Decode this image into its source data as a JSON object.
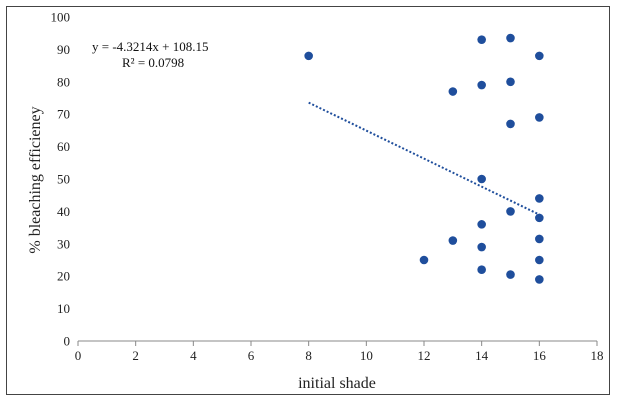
{
  "chart_data": {
    "type": "scatter",
    "title": "",
    "xlabel": "initial shade",
    "ylabel": "% bleaching efficieney",
    "xlim": [
      0,
      18
    ],
    "ylim": [
      0,
      100
    ],
    "xticks": [
      0,
      2,
      4,
      6,
      8,
      10,
      12,
      14,
      16,
      18
    ],
    "yticks": [
      0,
      10,
      20,
      30,
      40,
      50,
      60,
      70,
      80,
      90,
      100
    ],
    "grid": false,
    "legend": "none",
    "marker_color": "#1f4e9c",
    "trendline_color": "#1f4e9c",
    "points": [
      {
        "x": 8,
        "y": 88
      },
      {
        "x": 12,
        "y": 25
      },
      {
        "x": 13,
        "y": 77
      },
      {
        "x": 13,
        "y": 31
      },
      {
        "x": 14,
        "y": 93
      },
      {
        "x": 14,
        "y": 79
      },
      {
        "x": 14,
        "y": 50
      },
      {
        "x": 14,
        "y": 36
      },
      {
        "x": 14,
        "y": 29
      },
      {
        "x": 14,
        "y": 22
      },
      {
        "x": 15,
        "y": 93.5
      },
      {
        "x": 15,
        "y": 80
      },
      {
        "x": 15,
        "y": 67
      },
      {
        "x": 15,
        "y": 40
      },
      {
        "x": 15,
        "y": 20.5
      },
      {
        "x": 16,
        "y": 88
      },
      {
        "x": 16,
        "y": 69
      },
      {
        "x": 16,
        "y": 44
      },
      {
        "x": 16,
        "y": 38
      },
      {
        "x": 16,
        "y": 31.5
      },
      {
        "x": 16,
        "y": 25
      },
      {
        "x": 16,
        "y": 19
      }
    ],
    "trendline": {
      "slope": -4.3214,
      "intercept": 108.15,
      "x_range": [
        8,
        16
      ],
      "equation_label": "y = -4.3214x + 108.15",
      "r2_label": "R² = 0.0798"
    }
  }
}
